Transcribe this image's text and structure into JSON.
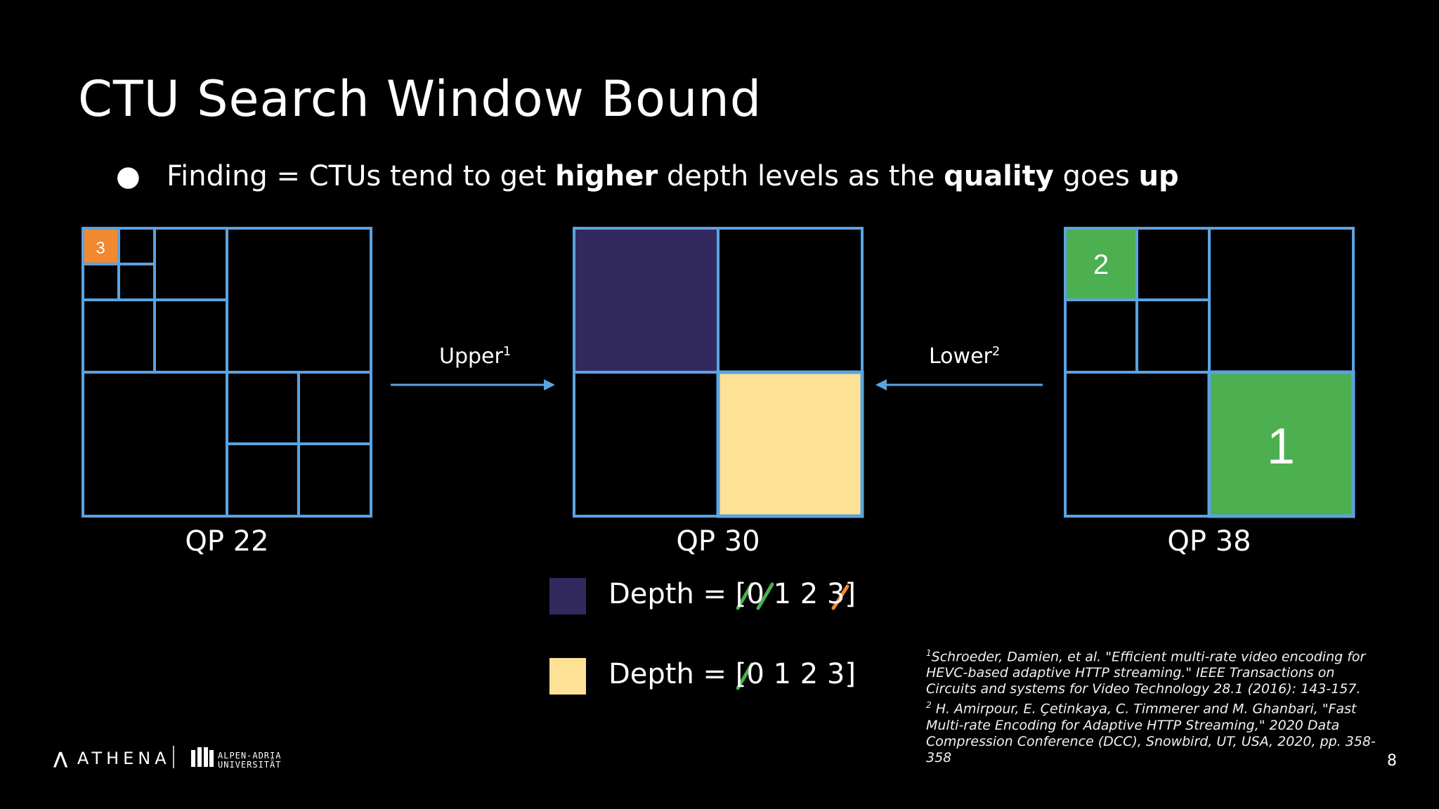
{
  "title": "CTU Search Window Bound",
  "bullet": {
    "prefix": "Finding = CTUs tend to get ",
    "bold1": "higher",
    "middle": " depth levels as the ",
    "bold2": "quality",
    "middle2": " goes ",
    "bold3": "up"
  },
  "diagrams": [
    {
      "label": "QP 22",
      "badge": "3"
    },
    {
      "label": "QP 30"
    },
    {
      "label": "QP 38",
      "badge_small": "2",
      "badge_large": "1"
    }
  ],
  "arrows": {
    "upper": {
      "text": "Upper",
      "sup": "1"
    },
    "lower": {
      "text": "Lower",
      "sup": "2"
    }
  },
  "legend": [
    {
      "color": "#322a5f",
      "text_prefix": "Depth = [",
      "digits": [
        "0",
        "1",
        "2",
        "3"
      ],
      "suffix": "]"
    },
    {
      "color": "#fde296",
      "text_prefix": "Depth = [",
      "digits": [
        "0",
        "1",
        "2",
        "3"
      ],
      "suffix": "]"
    }
  ],
  "colors": {
    "grid": "#5ba3e0",
    "orange": "#f0892f",
    "green": "#4caf50",
    "purple": "#322a5f",
    "yellow": "#fde296",
    "strike_green": "#4caf50",
    "strike_orange": "#f0892f"
  },
  "references": {
    "ref1_sup": "1",
    "ref1": "Schroeder, Damien, et al. \"Efficient multi-rate video encoding for HEVC-based adaptive HTTP streaming.\" IEEE Transactions on Circuits and systems for Video Technology 28.1 (2016): 143-157.",
    "ref2_sup": "2",
    "ref2": "H. Amirpour, E. Çetinkaya, C. Timmerer and M. Ghanbari, \"Fast Multi-rate Encoding for Adaptive HTTP Streaming,\" 2020 Data Compression Conference (DCC), Snowbird, UT, USA, 2020, pp. 358-358"
  },
  "page_number": "8",
  "logos": {
    "athena": "ATHENA",
    "university_line1": "ALPEN-ADRIA",
    "university_line2": "UNIVERSITÄT"
  }
}
